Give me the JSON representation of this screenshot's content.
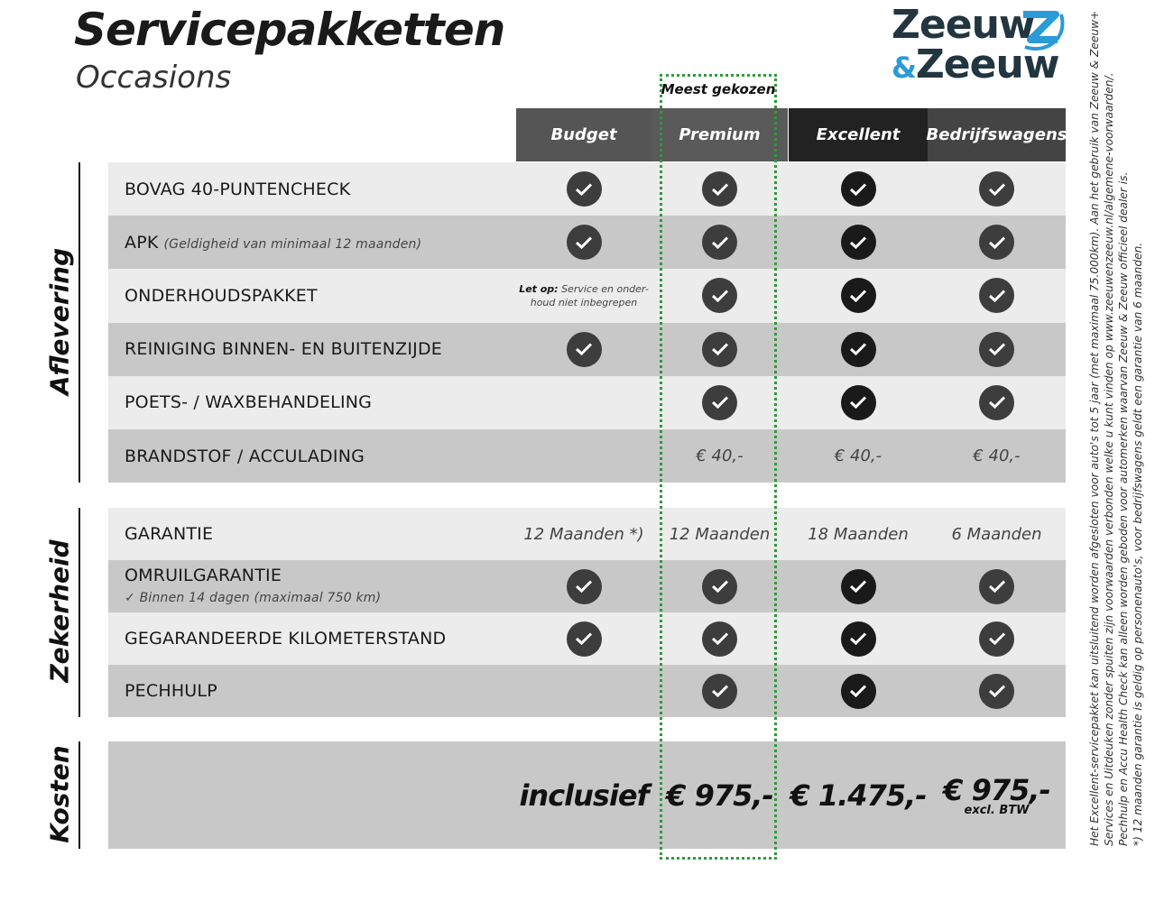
{
  "header": {
    "title": "Servicepakketten",
    "subtitle": "Occasions",
    "logo_text": [
      "Zeeuw",
      "&",
      "Zeeuw"
    ],
    "most_chosen": "Meest gekozen"
  },
  "colors": {
    "accent_green": "#2e9a3a",
    "logo_dark": "#223540",
    "logo_blue": "#2a9ad8",
    "row_light": "#ececec",
    "row_dark": "#c8c8c8"
  },
  "columns": [
    {
      "label": "Budget",
      "bg": "#555555"
    },
    {
      "label": "Premium",
      "bg": "#5a5a5a"
    },
    {
      "label": "Excellent",
      "bg": "#222222"
    },
    {
      "label": "Bedrijfswagens",
      "bg": "#444444"
    }
  ],
  "sections": [
    {
      "label": "Aflevering",
      "rows": [
        {
          "label": "BOVAG 40-PUNTENCHECK",
          "cells": [
            "check",
            "check",
            "check",
            "check"
          ]
        },
        {
          "label": "APK",
          "sub": "(Geldigheid van minimaal 12 maanden)",
          "cells": [
            "check",
            "check",
            "check",
            "check"
          ]
        },
        {
          "label": "ONDERHOUDSPAKKET",
          "note": {
            "bold": "Let op:",
            "text": " Service en onder-",
            "text2": "houd niet inbegrepen"
          },
          "cells": [
            "note",
            "check",
            "check",
            "check"
          ]
        },
        {
          "label": "REINIGING BINNEN- EN BUITENZIJDE",
          "cells": [
            "check",
            "check",
            "check",
            "check"
          ]
        },
        {
          "label": "POETS- / WAXBEHANDELING",
          "cells": [
            "",
            "check",
            "check",
            "check"
          ]
        },
        {
          "label": "BRANDSTOF / ACCULADING",
          "cells": [
            "",
            "€ 40,-",
            "€ 40,-",
            "€ 40,-"
          ]
        }
      ]
    },
    {
      "label": "Zekerheid",
      "rows": [
        {
          "label": "GARANTIE",
          "cells": [
            "12 Maanden *)",
            "12 Maanden",
            "18 Maanden",
            "6 Maanden"
          ]
        },
        {
          "label": "OMRUILGARANTIE",
          "sub2": "✓   Binnen 14 dagen (maximaal 750 km)",
          "cells": [
            "check",
            "check",
            "check",
            "check"
          ]
        },
        {
          "label": "GEGARANDEERDE KILOMETERSTAND",
          "cells": [
            "check",
            "check",
            "check",
            "check"
          ]
        },
        {
          "label": "PECHHULP",
          "cells": [
            "",
            "check",
            "check",
            "check"
          ]
        }
      ]
    },
    {
      "label": "Kosten",
      "rows": [
        {
          "label": "",
          "cells": [
            "inclusief",
            "€ 975,-",
            "€ 1.475,-",
            "€ 975,-"
          ],
          "subs": [
            "",
            "",
            "",
            "excl. BTW"
          ]
        }
      ]
    }
  ],
  "footnotes": [
    "Het Excellent-servicepakket kan uitsluitend worden afgesloten voor auto's tot 5 jaar (met maximaal 75.000km). Aan het gebruik van Zeeuw & Zeeuw+",
    "Services en Uitdeuken zonder spuiten zijn voorwaarden verbonden welke u kunt vinden op www.zeeuwenzeeuw.nl/algemene-voorwaarden/.",
    "Pechhulp en Accu Health Check kan alleen worden geboden voor automerken waarvan Zeeuw & Zeeuw officieel dealer is.",
    "*) 12 maanden garantie is geldig op personenauto's, voor bedrijfswagens geldt een garantie van 6 maanden."
  ]
}
